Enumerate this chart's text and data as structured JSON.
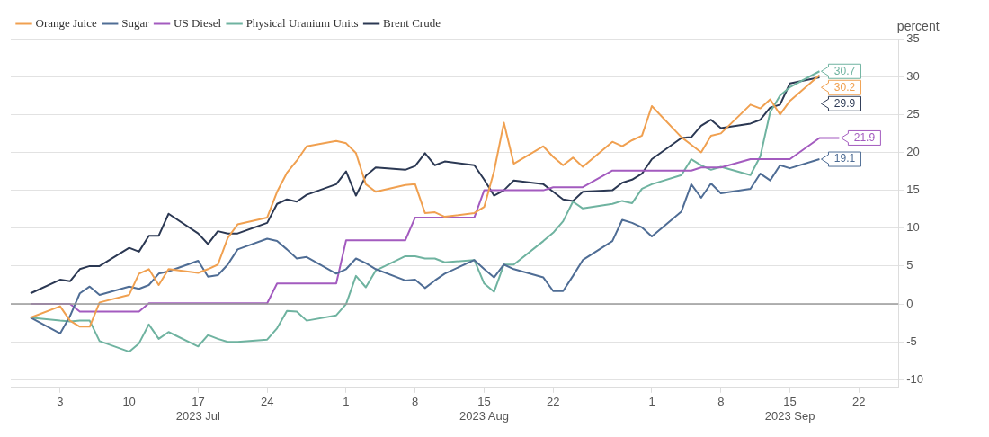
{
  "chart_data": {
    "type": "line",
    "ylabel": "percent",
    "x": [
      "2023-06-30",
      "2023-07-03",
      "2023-07-04",
      "2023-07-05",
      "2023-07-06",
      "2023-07-07",
      "2023-07-10",
      "2023-07-11",
      "2023-07-12",
      "2023-07-13",
      "2023-07-14",
      "2023-07-17",
      "2023-07-18",
      "2023-07-19",
      "2023-07-20",
      "2023-07-21",
      "2023-07-24",
      "2023-07-25",
      "2023-07-26",
      "2023-07-27",
      "2023-07-28",
      "2023-07-31",
      "2023-08-01",
      "2023-08-02",
      "2023-08-03",
      "2023-08-04",
      "2023-08-07",
      "2023-08-08",
      "2023-08-09",
      "2023-08-10",
      "2023-08-11",
      "2023-08-14",
      "2023-08-15",
      "2023-08-16",
      "2023-08-17",
      "2023-08-18",
      "2023-08-21",
      "2023-08-22",
      "2023-08-23",
      "2023-08-24",
      "2023-08-25",
      "2023-08-28",
      "2023-08-29",
      "2023-08-30",
      "2023-08-31",
      "2023-09-01",
      "2023-09-04",
      "2023-09-05",
      "2023-09-06",
      "2023-09-07",
      "2023-09-08",
      "2023-09-11",
      "2023-09-12",
      "2023-09-13",
      "2023-09-14",
      "2023-09-15",
      "2023-09-18",
      "2023-09-19",
      "2023-09-20"
    ],
    "series": [
      {
        "name": "Orange Juice",
        "color": "#f0a050",
        "values": [
          -1.8,
          -0.3,
          -2.2,
          -3.0,
          -3.0,
          0.2,
          1.2,
          4.0,
          4.6,
          2.5,
          4.6,
          4.1,
          4.6,
          5.2,
          8.7,
          10.5,
          11.4,
          14.8,
          17.3,
          18.9,
          20.8,
          21.5,
          21.2,
          19.9,
          15.8,
          14.8,
          15.7,
          15.8,
          12.0,
          12.1,
          11.5,
          12.0,
          12.8,
          17.5,
          23.9,
          18.5,
          20.8,
          19.4,
          18.3,
          19.3,
          18.1,
          21.4,
          20.8,
          21.6,
          22.2,
          26.1,
          22.0,
          21.0,
          20.0,
          22.2,
          22.5,
          26.3,
          25.8,
          27.0,
          25.0,
          26.8,
          30.2,
          null,
          null
        ],
        "value_labels": [
          null,
          null,
          null,
          null,
          null,
          null,
          null,
          null,
          null,
          null,
          null,
          null,
          null,
          null,
          null,
          null,
          null,
          null,
          null,
          null,
          null,
          null,
          null,
          null,
          null,
          null,
          null,
          null,
          null,
          null,
          null,
          null,
          null,
          null,
          null,
          null,
          null,
          null,
          null,
          null,
          null,
          null,
          null,
          null,
          null,
          null,
          null,
          null,
          null,
          null,
          null,
          null,
          null,
          null,
          null,
          null,
          "30.2",
          null,
          null
        ]
      },
      {
        "name": "Sugar",
        "color": "#4f6d95",
        "values": [
          -1.8,
          -3.9,
          -1.6,
          1.4,
          2.3,
          1.2,
          2.3,
          2.0,
          2.5,
          4.0,
          4.3,
          5.7,
          3.6,
          3.8,
          5.2,
          7.2,
          8.6,
          8.3,
          7.2,
          6.0,
          6.2,
          4.0,
          4.6,
          6.0,
          5.4,
          4.6,
          3.1,
          3.2,
          2.1,
          3.1,
          4.0,
          5.8,
          4.6,
          3.5,
          5.2,
          4.6,
          3.5,
          1.7,
          1.7,
          3.7,
          5.8,
          8.3,
          11.1,
          10.7,
          10.1,
          8.9,
          12.2,
          15.8,
          14.0,
          15.9,
          14.6,
          15.2,
          17.2,
          16.3,
          18.3,
          17.9,
          19.1,
          null,
          null
        ],
        "value_labels": [
          null,
          null,
          null,
          null,
          null,
          null,
          null,
          null,
          null,
          null,
          null,
          null,
          null,
          null,
          null,
          null,
          null,
          null,
          null,
          null,
          null,
          null,
          null,
          null,
          null,
          null,
          null,
          null,
          null,
          null,
          null,
          null,
          null,
          null,
          null,
          null,
          null,
          null,
          null,
          null,
          null,
          null,
          null,
          null,
          null,
          null,
          null,
          null,
          null,
          null,
          null,
          null,
          null,
          null,
          null,
          null,
          "19.1",
          null,
          null
        ]
      },
      {
        "name": "US Diesel",
        "color": "#a35bbf",
        "values": [
          0,
          0,
          0,
          -1.0,
          -1.0,
          -1.0,
          -1.0,
          -1.0,
          0.1,
          0.1,
          0.1,
          0.1,
          0.1,
          0.1,
          0.1,
          0.1,
          0.1,
          2.7,
          2.7,
          2.7,
          2.7,
          2.7,
          8.4,
          8.4,
          8.4,
          8.4,
          8.4,
          11.4,
          11.4,
          11.4,
          11.4,
          11.4,
          15.0,
          15.0,
          15.0,
          15.0,
          15.0,
          15.4,
          15.4,
          15.4,
          15.4,
          17.6,
          17.6,
          17.6,
          17.6,
          17.6,
          17.6,
          17.6,
          18.0,
          18.0,
          18.0,
          19.1,
          19.1,
          19.1,
          19.1,
          19.1,
          21.9,
          21.9,
          21.9
        ],
        "value_labels": [
          null,
          null,
          null,
          null,
          null,
          null,
          null,
          null,
          null,
          null,
          null,
          null,
          null,
          null,
          null,
          null,
          null,
          null,
          null,
          null,
          null,
          null,
          null,
          null,
          null,
          null,
          null,
          null,
          null,
          null,
          null,
          null,
          null,
          null,
          null,
          null,
          null,
          null,
          null,
          null,
          null,
          null,
          null,
          null,
          null,
          null,
          null,
          null,
          null,
          null,
          null,
          null,
          null,
          null,
          null,
          null,
          null,
          null,
          "21.9"
        ]
      },
      {
        "name": "Physical Uranium Units",
        "color": "#6fb3a0",
        "values": [
          -1.8,
          -2.2,
          -2.3,
          -2.2,
          -2.2,
          -4.9,
          -6.3,
          -5.2,
          -2.7,
          -4.6,
          -3.7,
          -5.6,
          -4.1,
          -4.6,
          -5.0,
          -5.0,
          -4.7,
          -3.2,
          -0.9,
          -1.0,
          -2.2,
          -1.5,
          0.0,
          3.7,
          2.2,
          4.4,
          6.3,
          6.3,
          6.0,
          6.0,
          5.5,
          5.8,
          2.7,
          1.6,
          5.2,
          5.2,
          8.3,
          9.4,
          10.9,
          13.5,
          12.6,
          13.2,
          13.6,
          13.3,
          15.2,
          15.8,
          17.0,
          19.1,
          18.3,
          17.7,
          18.1,
          17.0,
          19.5,
          25.3,
          27.5,
          28.6,
          30.7,
          null,
          null
        ],
        "value_labels": [
          null,
          null,
          null,
          null,
          null,
          null,
          null,
          null,
          null,
          null,
          null,
          null,
          null,
          null,
          null,
          null,
          null,
          null,
          null,
          null,
          null,
          null,
          null,
          null,
          null,
          null,
          null,
          null,
          null,
          null,
          null,
          null,
          null,
          null,
          null,
          null,
          null,
          null,
          null,
          null,
          null,
          null,
          null,
          null,
          null,
          null,
          null,
          null,
          null,
          null,
          null,
          null,
          null,
          null,
          null,
          null,
          "30.7",
          null,
          null
        ]
      },
      {
        "name": "Brent Crude",
        "color": "#2b3853",
        "values": [
          1.4,
          3.2,
          3.0,
          4.6,
          5.0,
          5.0,
          7.4,
          6.9,
          9.0,
          9.0,
          11.9,
          9.3,
          7.9,
          9.6,
          9.3,
          9.3,
          10.7,
          13.2,
          13.8,
          13.5,
          14.4,
          15.8,
          17.5,
          14.3,
          16.9,
          18.0,
          17.7,
          18.2,
          19.9,
          18.3,
          18.8,
          18.3,
          16.4,
          14.3,
          15.0,
          16.3,
          15.8,
          14.8,
          13.8,
          13.6,
          14.8,
          15.0,
          16.0,
          16.4,
          17.2,
          19.1,
          21.9,
          22.0,
          23.5,
          24.3,
          23.2,
          23.8,
          24.3,
          25.9,
          26.3,
          29.1,
          29.9,
          null,
          null
        ],
        "value_labels": [
          null,
          null,
          null,
          null,
          null,
          null,
          null,
          null,
          null,
          null,
          null,
          null,
          null,
          null,
          null,
          null,
          null,
          null,
          null,
          null,
          null,
          null,
          null,
          null,
          null,
          null,
          null,
          null,
          null,
          null,
          null,
          null,
          null,
          null,
          null,
          null,
          null,
          null,
          null,
          null,
          null,
          null,
          null,
          null,
          null,
          null,
          null,
          null,
          null,
          null,
          null,
          null,
          null,
          null,
          null,
          null,
          "29.9",
          null,
          null
        ]
      }
    ],
    "xlim": [
      "2023-06-28",
      "2023-09-26"
    ],
    "xticks": [
      {
        "value": "2023-07-03",
        "label": "3"
      },
      {
        "value": "2023-07-10",
        "label": "10"
      },
      {
        "value": "2023-07-17",
        "label": "17\n2023 Jul"
      },
      {
        "value": "2023-07-24",
        "label": "24"
      },
      {
        "value": "2023-08-01",
        "label": "1"
      },
      {
        "value": "2023-08-08",
        "label": "8"
      },
      {
        "value": "2023-08-15",
        "label": "15\n2023 Aug"
      },
      {
        "value": "2023-08-22",
        "label": "22"
      },
      {
        "value": "2023-09-01",
        "label": "1"
      },
      {
        "value": "2023-09-08",
        "label": "8"
      },
      {
        "value": "2023-09-15",
        "label": "15\n2023 Sep"
      },
      {
        "value": "2023-09-22",
        "label": "22"
      }
    ],
    "ylim": [
      -11,
      35
    ],
    "yticks": [
      -10,
      -5,
      0,
      5,
      10,
      15,
      20,
      25,
      30,
      35
    ],
    "ref_lines": [
      {
        "axis": "y",
        "value": 0,
        "color": "#9a9a9a"
      }
    ],
    "grid": "y",
    "legend": "top left",
    "marker": "none",
    "line_style": "solid"
  }
}
